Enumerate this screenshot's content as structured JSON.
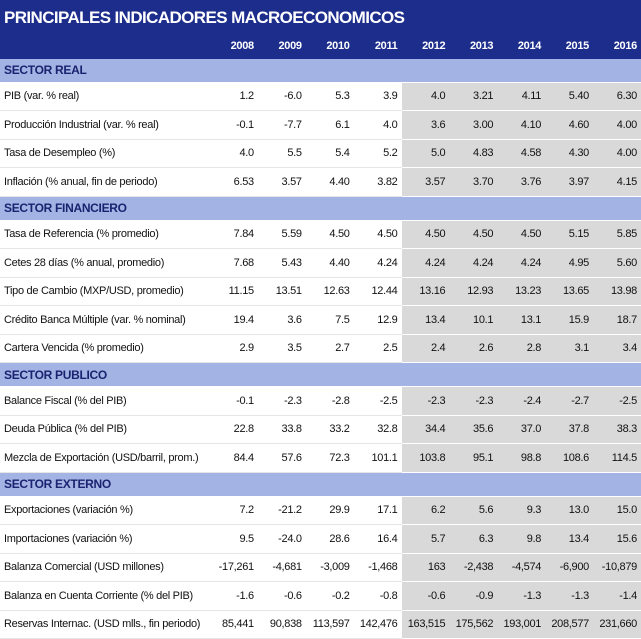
{
  "header": {
    "title": "PRINCIPALES INDICADORES MACROECONOMICOS"
  },
  "table": {
    "columns": [
      "2008",
      "2009",
      "2010",
      "2011",
      "2012",
      "2013",
      "2014",
      "2015",
      "2016"
    ],
    "sections": [
      {
        "name": "SECTOR REAL",
        "rows": [
          {
            "label": "PIB (var. % real)",
            "values": [
              "1.2",
              "-6.0",
              "5.3",
              "3.9",
              "4.0",
              "3.21",
              "4.11",
              "5.40",
              "6.30"
            ]
          },
          {
            "label": "Producción Industrial (var. % real)",
            "values": [
              "-0.1",
              "-7.7",
              "6.1",
              "4.0",
              "3.6",
              "3.00",
              "4.10",
              "4.60",
              "4.00"
            ]
          },
          {
            "label": "Tasa de Desempleo (%)",
            "values": [
              "4.0",
              "5.5",
              "5.4",
              "5.2",
              "5.0",
              "4.83",
              "4.58",
              "4.30",
              "4.00"
            ]
          },
          {
            "label": "Inflación (% anual, fin de periodo)",
            "values": [
              "6.53",
              "3.57",
              "4.40",
              "3.82",
              "3.57",
              "3.70",
              "3.76",
              "3.97",
              "4.15"
            ]
          }
        ]
      },
      {
        "name": "SECTOR FINANCIERO",
        "rows": [
          {
            "label": "Tasa de Referencia (% promedio)",
            "values": [
              "7.84",
              "5.59",
              "4.50",
              "4.50",
              "4.50",
              "4.50",
              "4.50",
              "5.15",
              "5.85"
            ]
          },
          {
            "label": "Cetes 28 días (% anual, promedio)",
            "values": [
              "7.68",
              "5.43",
              "4.40",
              "4.24",
              "4.24",
              "4.24",
              "4.24",
              "4.95",
              "5.60"
            ]
          },
          {
            "label": "Tipo de Cambio (MXP/USD, promedio)",
            "values": [
              "11.15",
              "13.51",
              "12.63",
              "12.44",
              "13.16",
              "12.93",
              "13.23",
              "13.65",
              "13.98"
            ]
          },
          {
            "label": "Crédito Banca Múltiple (var. % nominal)",
            "values": [
              "19.4",
              "3.6",
              "7.5",
              "12.9",
              "13.4",
              "10.1",
              "13.1",
              "15.9",
              "18.7"
            ]
          },
          {
            "label": "Cartera Vencida (% promedio)",
            "values": [
              "2.9",
              "3.5",
              "2.7",
              "2.5",
              "2.4",
              "2.6",
              "2.8",
              "3.1",
              "3.4"
            ]
          }
        ]
      },
      {
        "name": "SECTOR PUBLICO",
        "rows": [
          {
            "label": "Balance Fiscal (% del PIB)",
            "values": [
              "-0.1",
              "-2.3",
              "-2.8",
              "-2.5",
              "-2.3",
              "-2.3",
              "-2.4",
              "-2.7",
              "-2.5"
            ]
          },
          {
            "label": "Deuda Pública (% del PIB)",
            "values": [
              "22.8",
              "33.8",
              "33.2",
              "32.8",
              "34.4",
              "35.6",
              "37.0",
              "37.8",
              "38.3"
            ]
          },
          {
            "label": "Mezcla de Exportación (USD/barril, prom.)",
            "values": [
              "84.4",
              "57.6",
              "72.3",
              "101.1",
              "103.8",
              "95.1",
              "98.8",
              "108.6",
              "114.5"
            ]
          }
        ]
      },
      {
        "name": "SECTOR EXTERNO",
        "rows": [
          {
            "label": "Exportaciones (variación %)",
            "values": [
              "7.2",
              "-21.2",
              "29.9",
              "17.1",
              "6.2",
              "5.6",
              "9.3",
              "13.0",
              "15.0"
            ]
          },
          {
            "label": "Importaciones (variación %)",
            "values": [
              "9.5",
              "-24.0",
              "28.6",
              "16.4",
              "5.7",
              "6.3",
              "9.8",
              "13.4",
              "15.6"
            ]
          },
          {
            "label": "Balanza Comercial (USD millones)",
            "values": [
              "-17,261",
              "-4,681",
              "-3,009",
              "-1,468",
              "163",
              "-2,438",
              "-4,574",
              "-6,900",
              "-10,879"
            ]
          },
          {
            "label": "Balanza en Cuenta Corriente (% del PIB)",
            "values": [
              "-1.6",
              "-0.6",
              "-0.2",
              "-0.8",
              "-0.6",
              "-0.9",
              "-1.3",
              "-1.3",
              "-1.4"
            ]
          },
          {
            "label": "Reservas Internac. (USD mlls., fin periodo)",
            "values": [
              "85,441",
              "90,838",
              "113,597",
              "142,476",
              "163,515",
              "175,562",
              "193,001",
              "208,577",
              "231,660"
            ]
          }
        ]
      }
    ]
  }
}
